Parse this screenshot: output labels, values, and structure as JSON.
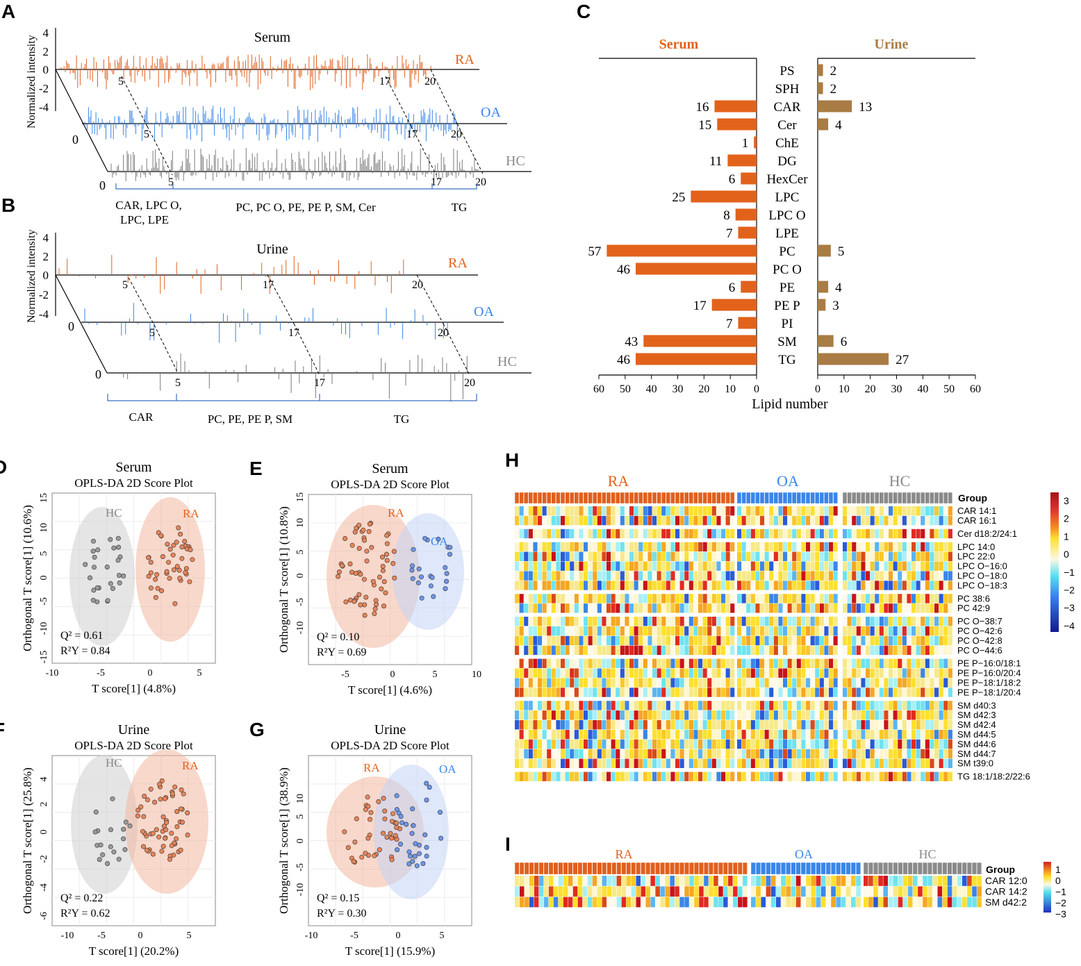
{
  "colors": {
    "RA": "#e0601e",
    "OA": "#3a86e8",
    "HC": "#7a7a7a",
    "urine_bar": "#a97c45",
    "serum_bar": "#e2621b",
    "ra_label": "#e2621b",
    "oa_label": "#3a86e8",
    "hc_label": "#8a8a8a",
    "serum_title": "#e2621b",
    "urine_title": "#a97c45"
  },
  "panels": {
    "A": {
      "letter": "A",
      "title": "Serum",
      "ylabel": "Normalized intensity",
      "yticks": [
        "4",
        "2",
        "0",
        "-2",
        "-4"
      ],
      "groups": [
        "RA",
        "OA",
        "HC"
      ],
      "zero_label": "0",
      "markers": [
        "5",
        "17",
        "20"
      ],
      "segments": [
        "CAR, LPC O,",
        "LPC, LPE",
        "PC, PC O,  PE, PE P,  SM, Cer",
        "TG"
      ]
    },
    "B": {
      "letter": "B",
      "title": "Urine",
      "ylabel": "Normalized intensity",
      "yticks": [
        "4",
        "2",
        "0",
        "-2",
        "-4"
      ],
      "groups": [
        "RA",
        "OA",
        "HC"
      ],
      "zero_label": "0",
      "markers": [
        "5",
        "17",
        "20"
      ],
      "segments": [
        "CAR",
        "PC, PE, PE P, SM",
        "TG"
      ]
    },
    "D": {
      "letter": "D",
      "title": "Serum",
      "subtitle": "OPLS-DA 2D Score Plot",
      "xlabel": "T score[1] (4.8%)",
      "ylabel": "Orthogonal T score[1] (10.6%)",
      "xticks": [
        "-10",
        "-5",
        "0",
        "5"
      ],
      "yticks": [
        "15",
        "10",
        "5",
        "0",
        "-5",
        "-10",
        "-15"
      ],
      "labels": [
        "HC",
        "RA"
      ],
      "q2": "Q² = 0.61",
      "r2y": "R²Y = 0.84"
    },
    "E": {
      "letter": "E",
      "title": "Serum",
      "subtitle": "OPLS-DA 2D Score Plot",
      "xlabel": "T score[1] (4.6%)",
      "ylabel": "Orthogonal T score[1] (10.8%)",
      "xticks": [
        "-5",
        "0",
        "5",
        "10"
      ],
      "yticks": [
        "15",
        "10",
        "5",
        "0",
        "-5",
        "-10"
      ],
      "labels": [
        "RA",
        "OA"
      ],
      "q2": "Q² = 0.10",
      "r2y": "R²Y = 0.69"
    },
    "F": {
      "letter": "F",
      "title": "Urine",
      "subtitle": "OPLS-DA 2D Score Plot",
      "xlabel": "T score[1] (20.2%)",
      "ylabel": "Orthogonal T score[1] (25.8%)",
      "xticks": [
        "-10",
        "-5",
        "0",
        "5"
      ],
      "yticks": [
        "4",
        "2",
        "0",
        "-2",
        "-4",
        "-6"
      ],
      "labels": [
        "HC",
        "RA"
      ],
      "q2": "Q² = 0.22",
      "r2y": "R²Y = 0.62"
    },
    "G": {
      "letter": "G",
      "title": "Urine",
      "subtitle": "OPLS-DA 2D Score Plot",
      "xlabel": "T score[1] (15.9%)",
      "ylabel": "Orthogonal T score[1] (38.9%)",
      "xticks": [
        "-10",
        "-5",
        "0",
        "5"
      ],
      "yticks": [
        "10",
        "5",
        "0",
        "-5",
        "-10"
      ],
      "labels": [
        "RA",
        "OA"
      ],
      "q2": "Q² = 0.15",
      "r2y": "R²Y = 0.30"
    },
    "H": {
      "letter": "H",
      "groups": [
        "RA",
        "OA",
        "HC"
      ],
      "group_label": "Group",
      "legend_ticks": [
        "3",
        "2",
        "1",
        "0",
        "−1",
        "−2",
        "−3",
        "−4"
      ],
      "rows": [
        "CAR 14:1",
        "CAR 16:1",
        "Cer d18:2/24:1",
        "LPC 14:0",
        "LPC 22:0",
        "LPC O−16:0",
        "LPC O−18:0",
        "LPC O−18:3",
        "PC 38:6",
        "PC 42:9",
        "PC O−38:7",
        "PC O−42:6",
        "PC O−42:8",
        "PC O−44:6",
        "PE P−16:0/18:1",
        "PE P−16:0/20:4",
        "PE P−18:1/18:2",
        "PE P−18:1/20:4",
        "SM d40:3",
        "SM d42:3",
        "SM d42:4",
        "SM d44:5",
        "SM d44:6",
        "SM d44:7",
        "SM t39:0",
        "TG 18:1/18:2/22:6"
      ]
    },
    "I": {
      "letter": "I",
      "groups": [
        "RA",
        "OA",
        "HC"
      ],
      "group_label": "Group",
      "legend_ticks": [
        "1",
        "0",
        "−1",
        "−2",
        "−3"
      ],
      "rows": [
        "CAR 12:0",
        "CAR 14:2",
        "SM d42:2"
      ]
    }
  },
  "chart_data": {
    "type": "bar",
    "title_left": "Serum",
    "title_right": "Urine",
    "xlabel": "Lipid number",
    "xticks_left": [
      "60",
      "50",
      "40",
      "30",
      "20",
      "10",
      "0"
    ],
    "xticks_right": [
      "0",
      "10",
      "20",
      "30",
      "40",
      "50",
      "60"
    ],
    "xlim": [
      0,
      60
    ],
    "categories": [
      "PS",
      "SPH",
      "CAR",
      "Cer",
      "ChE",
      "DG",
      "HexCer",
      "LPC",
      "LPC O",
      "LPE",
      "PC",
      "PC O",
      "PE",
      "PE P",
      "PI",
      "SM",
      "TG"
    ],
    "series": [
      {
        "name": "Serum",
        "values": [
          null,
          null,
          16,
          15,
          1,
          11,
          6,
          25,
          8,
          7,
          57,
          46,
          6,
          17,
          7,
          43,
          46
        ]
      },
      {
        "name": "Urine",
        "values": [
          2,
          2,
          13,
          4,
          null,
          null,
          null,
          null,
          null,
          null,
          5,
          null,
          4,
          3,
          null,
          6,
          27
        ]
      }
    ]
  }
}
